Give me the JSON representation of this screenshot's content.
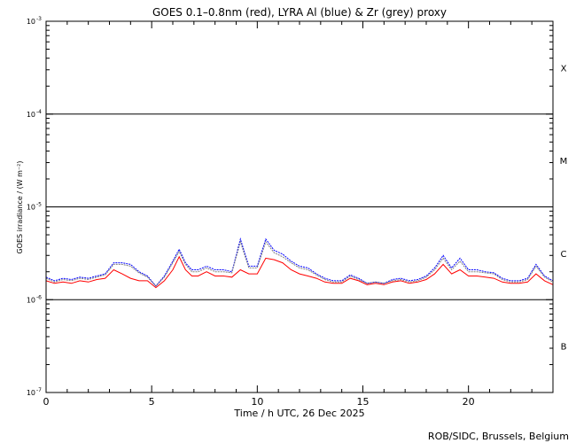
{
  "chart_data": {
    "type": "line",
    "title": "GOES 0.1–0.8nm (red), LYRA Al (blue) & Zr (grey) proxy",
    "xlabel": "Time / h UTC, 26 Dec 2025",
    "ylabel": "GOES irradiance / (W m⁻²)",
    "xlim": [
      0,
      24
    ],
    "ylim": [
      1e-07,
      0.001
    ],
    "yscale": "log",
    "x_ticks": [
      0,
      5,
      10,
      15,
      20
    ],
    "y_ticks": [
      {
        "value": 0.001,
        "mantissa": "10",
        "exp": "-3"
      },
      {
        "value": 0.0001,
        "mantissa": "10",
        "exp": "-4"
      },
      {
        "value": 1e-05,
        "mantissa": "10",
        "exp": "-5"
      },
      {
        "value": 1e-06,
        "mantissa": "10",
        "exp": "-6"
      },
      {
        "value": 1e-07,
        "mantissa": "10",
        "exp": "-7"
      }
    ],
    "flare_class_lines": [
      0.0001,
      1e-05,
      1e-06
    ],
    "flare_classes": [
      {
        "label": "X",
        "value": 0.000316
      },
      {
        "label": "M",
        "value": 3.16e-05
      },
      {
        "label": "C",
        "value": 3.16e-06
      },
      {
        "label": "B",
        "value": 3.16e-07
      }
    ],
    "series": [
      {
        "color": "#ff0000",
        "x": [
          0,
          0.4,
          0.8,
          1.2,
          1.6,
          2.0,
          2.4,
          2.8,
          3.2,
          3.6,
          4.0,
          4.4,
          4.8,
          5.2,
          5.6,
          6.0,
          6.3,
          6.6,
          6.9,
          7.2,
          7.6,
          8.0,
          8.4,
          8.8,
          9.2,
          9.6,
          10.0,
          10.4,
          10.8,
          11.2,
          11.6,
          12.0,
          12.4,
          12.8,
          13.2,
          13.6,
          14.0,
          14.4,
          14.8,
          15.2,
          15.6,
          16.0,
          16.4,
          16.8,
          17.2,
          17.6,
          18.0,
          18.4,
          18.8,
          19.2,
          19.6,
          20.0,
          20.4,
          20.8,
          21.2,
          21.6,
          22.0,
          22.4,
          22.8,
          23.2,
          23.6,
          24.0
        ],
        "values": [
          1.6e-06,
          1.5e-06,
          1.55e-06,
          1.5e-06,
          1.6e-06,
          1.55e-06,
          1.65e-06,
          1.7e-06,
          2.1e-06,
          1.9e-06,
          1.7e-06,
          1.6e-06,
          1.6e-06,
          1.35e-06,
          1.6e-06,
          2.1e-06,
          2.9e-06,
          2.1e-06,
          1.8e-06,
          1.8e-06,
          2e-06,
          1.8e-06,
          1.8e-06,
          1.75e-06,
          2.1e-06,
          1.9e-06,
          1.9e-06,
          2.8e-06,
          2.7e-06,
          2.5e-06,
          2.1e-06,
          1.9e-06,
          1.8e-06,
          1.7e-06,
          1.55e-06,
          1.5e-06,
          1.5e-06,
          1.7e-06,
          1.6e-06,
          1.45e-06,
          1.5e-06,
          1.45e-06,
          1.55e-06,
          1.6e-06,
          1.5e-06,
          1.55e-06,
          1.65e-06,
          1.9e-06,
          2.4e-06,
          1.9e-06,
          2.1e-06,
          1.8e-06,
          1.8e-06,
          1.75e-06,
          1.7e-06,
          1.55e-06,
          1.5e-06,
          1.5e-06,
          1.55e-06,
          1.9e-06,
          1.6e-06,
          1.45e-06
        ]
      },
      {
        "color": "#0000ff",
        "x": [
          0,
          0.4,
          0.8,
          1.2,
          1.6,
          2.0,
          2.4,
          2.8,
          3.2,
          3.6,
          4.0,
          4.4,
          4.8,
          5.2,
          5.6,
          6.0,
          6.3,
          6.6,
          6.9,
          7.2,
          7.6,
          8.0,
          8.4,
          8.8,
          9.2,
          9.6,
          10.0,
          10.4,
          10.8,
          11.2,
          11.6,
          12.0,
          12.4,
          12.8,
          13.2,
          13.6,
          14.0,
          14.4,
          14.8,
          15.2,
          15.6,
          16.0,
          16.4,
          16.8,
          17.2,
          17.6,
          18.0,
          18.4,
          18.8,
          19.2,
          19.6,
          20.0,
          20.4,
          20.8,
          21.2,
          21.6,
          22.0,
          22.4,
          22.8,
          23.2,
          23.6,
          24.0
        ],
        "values": [
          1.75e-06,
          1.6e-06,
          1.7e-06,
          1.65e-06,
          1.75e-06,
          1.7e-06,
          1.8e-06,
          1.9e-06,
          2.5e-06,
          2.5e-06,
          2.4e-06,
          2e-06,
          1.8e-06,
          1.4e-06,
          1.8e-06,
          2.6e-06,
          3.5e-06,
          2.5e-06,
          2.1e-06,
          2.1e-06,
          2.3e-06,
          2.1e-06,
          2.1e-06,
          2e-06,
          4.5e-06,
          2.3e-06,
          2.3e-06,
          4.5e-06,
          3.4e-06,
          3.1e-06,
          2.6e-06,
          2.3e-06,
          2.2e-06,
          1.9e-06,
          1.7e-06,
          1.6e-06,
          1.6e-06,
          1.85e-06,
          1.7e-06,
          1.5e-06,
          1.55e-06,
          1.5e-06,
          1.65e-06,
          1.7e-06,
          1.6e-06,
          1.65e-06,
          1.8e-06,
          2.2e-06,
          3e-06,
          2.2e-06,
          2.8e-06,
          2.1e-06,
          2.1e-06,
          2e-06,
          1.95e-06,
          1.7e-06,
          1.6e-06,
          1.6e-06,
          1.7e-06,
          2.4e-06,
          1.8e-06,
          1.6e-06
        ]
      },
      {
        "color": "#808080",
        "x": [
          0,
          0.4,
          0.8,
          1.2,
          1.6,
          2.0,
          2.4,
          2.8,
          3.2,
          3.6,
          4.0,
          4.4,
          4.8,
          5.2,
          5.6,
          6.0,
          6.3,
          6.6,
          6.9,
          7.2,
          7.6,
          8.0,
          8.4,
          8.8,
          9.2,
          9.6,
          10.0,
          10.4,
          10.8,
          11.2,
          11.6,
          12.0,
          12.4,
          12.8,
          13.2,
          13.6,
          14.0,
          14.4,
          14.8,
          15.2,
          15.6,
          16.0,
          16.4,
          16.8,
          17.2,
          17.6,
          18.0,
          18.4,
          18.8,
          19.2,
          19.6,
          20.0,
          20.4,
          20.8,
          21.2,
          21.6,
          22.0,
          22.4,
          22.8,
          23.2,
          23.6,
          24.0
        ],
        "values": [
          1.7e-06,
          1.55e-06,
          1.65e-06,
          1.6e-06,
          1.7e-06,
          1.65e-06,
          1.75e-06,
          1.85e-06,
          2.4e-06,
          2.4e-06,
          2.3e-06,
          1.95e-06,
          1.75e-06,
          1.4e-06,
          1.75e-06,
          2.5e-06,
          3.3e-06,
          2.4e-06,
          2e-06,
          2e-06,
          2.2e-06,
          2e-06,
          2e-06,
          1.95e-06,
          4.2e-06,
          2.2e-06,
          2.2e-06,
          4.2e-06,
          3.2e-06,
          2.9e-06,
          2.5e-06,
          2.2e-06,
          2.1e-06,
          1.85e-06,
          1.65e-06,
          1.55e-06,
          1.55e-06,
          1.8e-06,
          1.65e-06,
          1.5e-06,
          1.55e-06,
          1.5e-06,
          1.6e-06,
          1.65e-06,
          1.55e-06,
          1.6e-06,
          1.75e-06,
          2.1e-06,
          2.8e-06,
          2.1e-06,
          2.6e-06,
          2e-06,
          2e-06,
          1.95e-06,
          1.9e-06,
          1.65e-06,
          1.55e-06,
          1.55e-06,
          1.65e-06,
          2.3e-06,
          1.75e-06,
          1.55e-06
        ]
      }
    ],
    "credit": "ROB/SIDC, Brussels, Belgium"
  }
}
